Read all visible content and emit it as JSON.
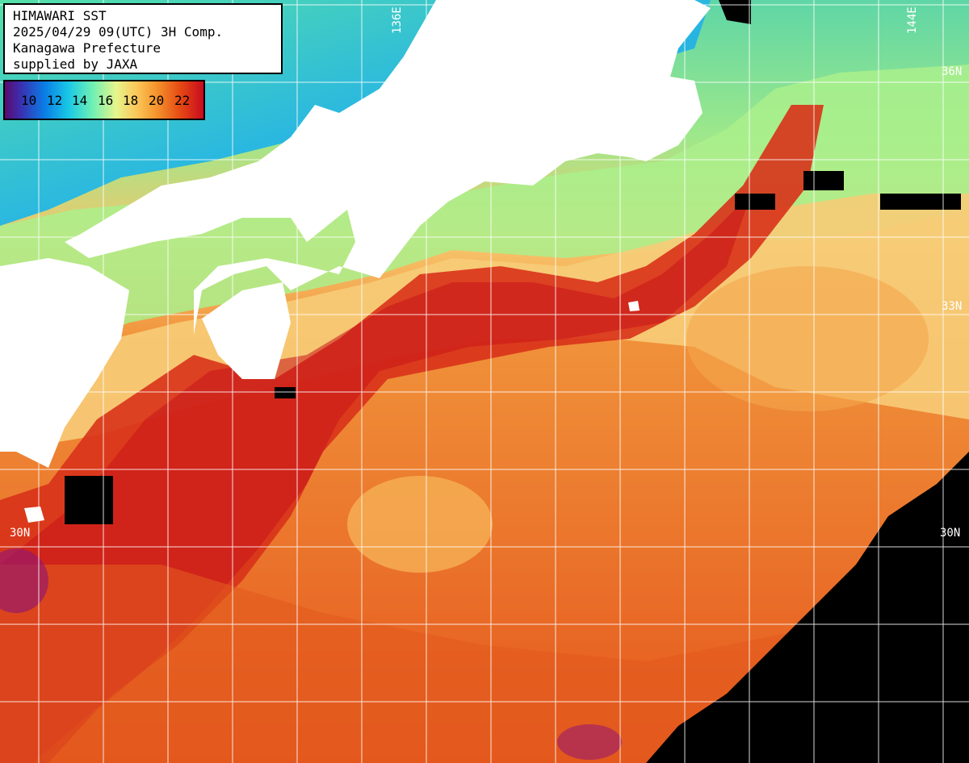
{
  "header": {
    "line1": "HIMAWARI SST",
    "line2": "2025/04/29 09(UTC) 3H Comp.",
    "line3": "Kanagawa Prefecture",
    "line4": "supplied by JAXA"
  },
  "legend": {
    "ticks": [
      "10",
      "12",
      "14",
      "16",
      "18",
      "20",
      "22"
    ]
  },
  "grid_labels": {
    "lon_136": "136E",
    "lon_144": "144E",
    "lat_36": "36N",
    "lat_33": "33N",
    "lat_30_left": "30N",
    "lat_30_right": "30N"
  },
  "colors": {
    "land": "#ffffff",
    "no_data": "#000000",
    "warm": "#e64b14",
    "hot": "#c80a1e",
    "cool": "#6ef0b4",
    "cold": "#19c8e6",
    "grid": "#ffffff"
  }
}
